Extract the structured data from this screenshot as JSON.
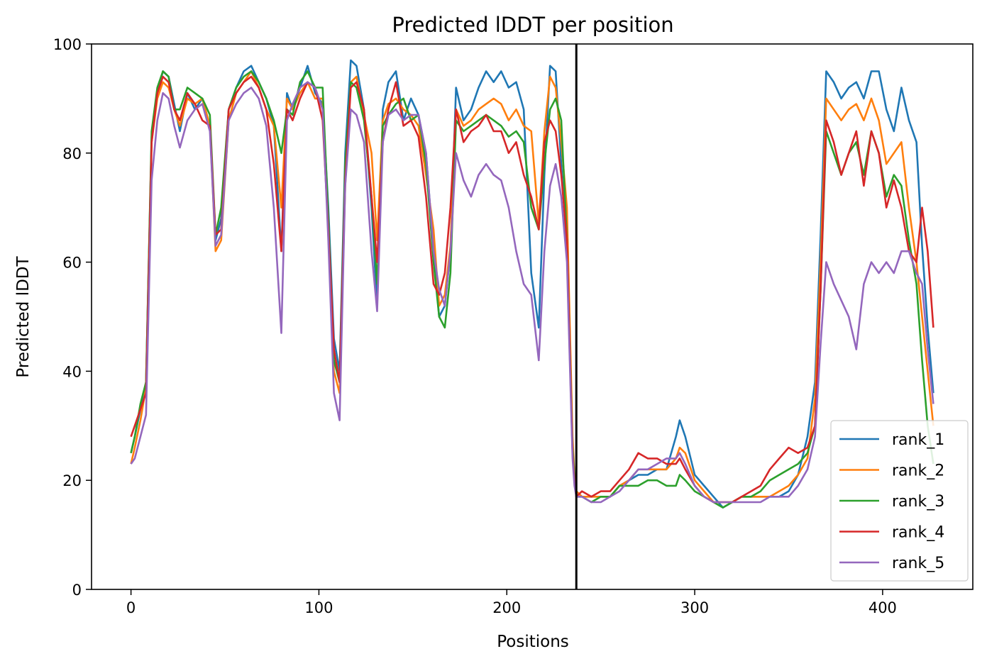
{
  "chart_data": {
    "type": "line",
    "title": "Predicted lDDT per position",
    "xlabel": "Positions",
    "ylabel": "Predicted lDDT",
    "xlim": [
      -21,
      448
    ],
    "ylim": [
      0,
      100
    ],
    "xticks": [
      0,
      100,
      200,
      300,
      400
    ],
    "yticks": [
      0,
      20,
      40,
      60,
      80,
      100
    ],
    "grid": false,
    "legend_position": "lower right",
    "separator_x": 237,
    "x": [
      0,
      2,
      5,
      8,
      11,
      14,
      17,
      20,
      23,
      26,
      30,
      34,
      38,
      42,
      45,
      48,
      52,
      56,
      60,
      64,
      68,
      72,
      76,
      80,
      83,
      86,
      90,
      94,
      98,
      102,
      105,
      108,
      111,
      114,
      117,
      120,
      124,
      128,
      131,
      134,
      137,
      141,
      145,
      149,
      153,
      157,
      161,
      164,
      167,
      170,
      173,
      177,
      181,
      185,
      189,
      193,
      197,
      201,
      205,
      209,
      213,
      217,
      220,
      223,
      226,
      229,
      232,
      235,
      236,
      237,
      240,
      245,
      250,
      255,
      260,
      265,
      270,
      275,
      280,
      285,
      290,
      292,
      295,
      300,
      305,
      310,
      315,
      320,
      325,
      330,
      335,
      340,
      345,
      350,
      355,
      360,
      364,
      367,
      370,
      374,
      378,
      382,
      386,
      390,
      394,
      398,
      402,
      406,
      410,
      414,
      418,
      421,
      424,
      427
    ],
    "series": [
      {
        "name": "rank_1",
        "color": "#1f77b4",
        "values": [
          25,
          28,
          33,
          38,
          83,
          91,
          95,
          94,
          89,
          84,
          91,
          88,
          90,
          85,
          64,
          68,
          88,
          92,
          95,
          96,
          93,
          90,
          85,
          62,
          91,
          88,
          92,
          96,
          91,
          89,
          70,
          46,
          40,
          80,
          97,
          96,
          88,
          70,
          52,
          88,
          93,
          95,
          86,
          90,
          87,
          80,
          62,
          50,
          52,
          62,
          92,
          86,
          88,
          92,
          95,
          93,
          95,
          92,
          93,
          88,
          58,
          48,
          76,
          96,
          95,
          78,
          62,
          25,
          21,
          18,
          17,
          17,
          17,
          17,
          19,
          20,
          21,
          21,
          22,
          22,
          28,
          31,
          28,
          21,
          19,
          17,
          15,
          16,
          17,
          17,
          17,
          17,
          17,
          18,
          21,
          28,
          38,
          65,
          95,
          93,
          90,
          92,
          93,
          90,
          95,
          95,
          88,
          84,
          92,
          86,
          82,
          63,
          48,
          36
        ]
      },
      {
        "name": "rank_2",
        "color": "#ff7f0e",
        "values": [
          23,
          26,
          31,
          37,
          82,
          90,
          93,
          92,
          88,
          85,
          90,
          89,
          90,
          85,
          62,
          64,
          86,
          91,
          93,
          95,
          92,
          88,
          85,
          70,
          90,
          88,
          91,
          93,
          90,
          90,
          65,
          40,
          36,
          74,
          93,
          94,
          87,
          80,
          64,
          86,
          89,
          90,
          88,
          87,
          85,
          76,
          66,
          52,
          54,
          63,
          88,
          85,
          86,
          88,
          89,
          90,
          89,
          86,
          88,
          85,
          84,
          67,
          84,
          94,
          92,
          82,
          70,
          28,
          21,
          18,
          17,
          17,
          17,
          17,
          19,
          20,
          22,
          22,
          22,
          22,
          24,
          26,
          25,
          20,
          18,
          16,
          16,
          16,
          17,
          17,
          17,
          17,
          18,
          19,
          21,
          24,
          35,
          60,
          90,
          88,
          86,
          88,
          89,
          86,
          90,
          86,
          78,
          80,
          82,
          70,
          60,
          50,
          40,
          30
        ]
      },
      {
        "name": "rank_3",
        "color": "#2ca02c",
        "values": [
          25,
          28,
          34,
          38,
          84,
          92,
          95,
          94,
          88,
          88,
          92,
          91,
          90,
          87,
          65,
          70,
          88,
          92,
          94,
          95,
          93,
          90,
          86,
          80,
          88,
          87,
          93,
          95,
          92,
          92,
          68,
          42,
          38,
          78,
          93,
          92,
          86,
          72,
          56,
          85,
          87,
          89,
          90,
          86,
          87,
          78,
          60,
          50,
          48,
          58,
          86,
          84,
          85,
          86,
          87,
          86,
          85,
          83,
          84,
          82,
          70,
          66,
          78,
          88,
          90,
          86,
          64,
          26,
          21,
          17,
          17,
          16,
          17,
          17,
          19,
          19,
          19,
          20,
          20,
          19,
          19,
          21,
          20,
          18,
          17,
          16,
          15,
          16,
          17,
          17,
          18,
          20,
          21,
          22,
          23,
          25,
          30,
          55,
          84,
          80,
          76,
          80,
          82,
          76,
          84,
          80,
          72,
          76,
          74,
          64,
          56,
          42,
          30,
          23
        ]
      },
      {
        "name": "rank_4",
        "color": "#d62728",
        "values": [
          28,
          30,
          33,
          36,
          82,
          91,
          94,
          93,
          88,
          86,
          91,
          89,
          86,
          85,
          65,
          66,
          88,
          91,
          93,
          94,
          92,
          88,
          78,
          62,
          88,
          86,
          90,
          93,
          92,
          86,
          66,
          44,
          38,
          75,
          92,
          93,
          88,
          72,
          60,
          82,
          88,
          93,
          85,
          86,
          83,
          72,
          56,
          54,
          58,
          70,
          88,
          82,
          84,
          85,
          87,
          84,
          84,
          80,
          82,
          76,
          72,
          66,
          82,
          86,
          84,
          76,
          64,
          25,
          20,
          17,
          18,
          17,
          18,
          18,
          20,
          22,
          25,
          24,
          24,
          23,
          23,
          24,
          22,
          19,
          17,
          16,
          16,
          16,
          17,
          18,
          19,
          22,
          24,
          26,
          25,
          26,
          30,
          55,
          86,
          82,
          76,
          80,
          84,
          74,
          84,
          80,
          70,
          75,
          70,
          62,
          60,
          70,
          62,
          48
        ]
      },
      {
        "name": "rank_5",
        "color": "#9467bd",
        "values": [
          23,
          24,
          28,
          32,
          75,
          86,
          91,
          90,
          85,
          81,
          86,
          88,
          89,
          84,
          63,
          65,
          86,
          89,
          91,
          92,
          90,
          85,
          70,
          47,
          86,
          89,
          92,
          93,
          92,
          88,
          64,
          36,
          31,
          74,
          88,
          87,
          82,
          62,
          51,
          82,
          87,
          88,
          86,
          87,
          87,
          80,
          62,
          55,
          52,
          62,
          80,
          75,
          72,
          76,
          78,
          76,
          75,
          70,
          62,
          56,
          54,
          42,
          62,
          74,
          78,
          72,
          60,
          24,
          19,
          17,
          17,
          16,
          16,
          17,
          18,
          20,
          22,
          22,
          23,
          24,
          24,
          25,
          23,
          19,
          17,
          16,
          16,
          16,
          16,
          16,
          16,
          17,
          17,
          17,
          19,
          22,
          28,
          45,
          60,
          56,
          53,
          50,
          44,
          56,
          60,
          58,
          60,
          58,
          62,
          62,
          58,
          56,
          44,
          34
        ]
      }
    ]
  }
}
